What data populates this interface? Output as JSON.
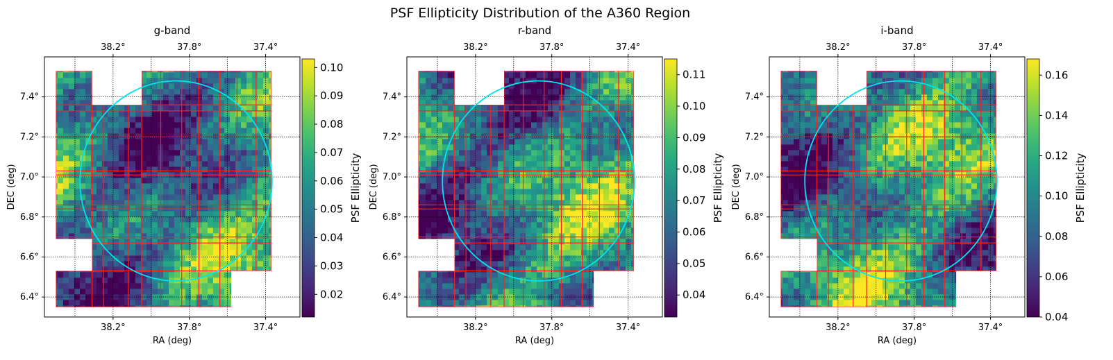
{
  "title": "PSF Ellipticity Distribution of the A360 Region",
  "chart_data": [
    {
      "type": "heatmap",
      "title": "g-band",
      "xlabel": "RA (deg)",
      "ylabel": "DEC (deg)",
      "colorbar_label": "PSF Ellipticity",
      "colormap": "viridis",
      "x_inverted": true,
      "xlim": [
        38.56,
        37.22
      ],
      "ylim": [
        6.3,
        7.6
      ],
      "x_ticks": [
        38.2,
        37.8,
        37.4
      ],
      "x_tick_labels": [
        "38.2°",
        "37.8°",
        "37.4°"
      ],
      "y_ticks": [
        6.4,
        6.6,
        6.8,
        7.0,
        7.2,
        7.4
      ],
      "y_tick_labels": [
        "6.4°",
        "6.6°",
        "6.8°",
        "7.0°",
        "7.2°",
        "7.4°"
      ],
      "colorbar_range": [
        0.012,
        0.103
      ],
      "colorbar_ticks": [
        "0.02",
        "0.03",
        "0.04",
        "0.05",
        "0.06",
        "0.07",
        "0.08",
        "0.09",
        "0.10"
      ],
      "colorbar_tick_values": [
        0.02,
        0.03,
        0.04,
        0.05,
        0.06,
        0.07,
        0.08,
        0.09,
        0.1
      ],
      "circle": {
        "center_ra": 37.87,
        "center_dec": 6.98,
        "radius_deg": 0.5,
        "color": "#00e5ee"
      },
      "grid": true,
      "field_seed": 1
    },
    {
      "type": "heatmap",
      "title": "r-band",
      "xlabel": "RA (deg)",
      "ylabel": "DEC (deg)",
      "colorbar_label": "PSF Ellipticity",
      "colormap": "viridis",
      "x_inverted": true,
      "xlim": [
        38.56,
        37.22
      ],
      "ylim": [
        6.3,
        7.6
      ],
      "x_ticks": [
        38.2,
        37.8,
        37.4
      ],
      "x_tick_labels": [
        "38.2°",
        "37.8°",
        "37.4°"
      ],
      "y_ticks": [
        6.4,
        6.6,
        6.8,
        7.0,
        7.2,
        7.4
      ],
      "y_tick_labels": [
        "6.4°",
        "6.6°",
        "6.8°",
        "7.0°",
        "7.2°",
        "7.4°"
      ],
      "colorbar_range": [
        0.033,
        0.115
      ],
      "colorbar_ticks": [
        "0.04",
        "0.05",
        "0.06",
        "0.07",
        "0.08",
        "0.09",
        "0.10",
        "0.11"
      ],
      "colorbar_tick_values": [
        0.04,
        0.05,
        0.06,
        0.07,
        0.08,
        0.09,
        0.1,
        0.11
      ],
      "circle": {
        "center_ra": 37.87,
        "center_dec": 6.98,
        "radius_deg": 0.5,
        "color": "#00e5ee"
      },
      "grid": true,
      "field_seed": 2
    },
    {
      "type": "heatmap",
      "title": "i-band",
      "xlabel": "RA (deg)",
      "ylabel": "DEC (deg)",
      "colorbar_label": "PSF Ellipticity",
      "colormap": "viridis",
      "x_inverted": true,
      "xlim": [
        38.56,
        37.22
      ],
      "ylim": [
        6.3,
        7.6
      ],
      "x_ticks": [
        38.2,
        37.8,
        37.4
      ],
      "x_tick_labels": [
        "38.2°",
        "37.8°",
        "37.4°"
      ],
      "y_ticks": [
        6.4,
        6.6,
        6.8,
        7.0,
        7.2,
        7.4
      ],
      "y_tick_labels": [
        "6.4°",
        "6.6°",
        "6.8°",
        "7.0°",
        "7.2°",
        "7.4°"
      ],
      "colorbar_range": [
        0.04,
        0.168
      ],
      "colorbar_ticks": [
        "0.04",
        "0.06",
        "0.08",
        "0.10",
        "0.12",
        "0.14",
        "0.16"
      ],
      "colorbar_tick_values": [
        0.04,
        0.06,
        0.08,
        0.1,
        0.12,
        0.14,
        0.16
      ],
      "circle": {
        "center_ra": 37.87,
        "center_dec": 6.98,
        "radius_deg": 0.5,
        "color": "#00e5ee"
      },
      "grid": true,
      "field_seed": 3
    }
  ],
  "colors": {
    "tile_border": "#ff2020",
    "grid": "#000000",
    "circle": "#00e5ee"
  }
}
